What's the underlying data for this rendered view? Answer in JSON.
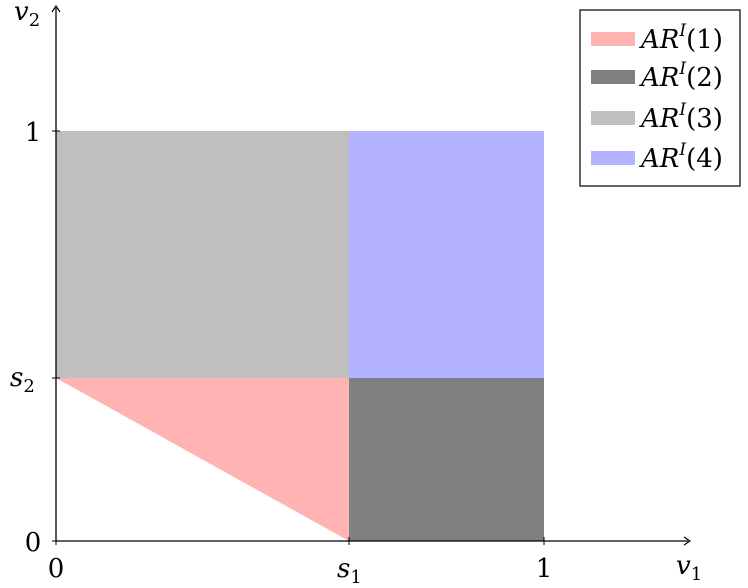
{
  "axes": {
    "x_label": "v",
    "x_label_sub": "1",
    "y_label": "v",
    "y_label_sub": "2",
    "x_ticks": [
      {
        "text": "0",
        "sub": ""
      },
      {
        "text": "s",
        "sub": "1"
      },
      {
        "text": "1",
        "sub": ""
      }
    ],
    "y_ticks": [
      {
        "text": "0",
        "sub": ""
      },
      {
        "text": "s",
        "sub": "2"
      },
      {
        "text": "1",
        "sub": ""
      }
    ]
  },
  "regions": [
    {
      "id": "AR1",
      "color": "#FFB3B3"
    },
    {
      "id": "AR2",
      "color": "#808080"
    },
    {
      "id": "AR3",
      "color": "#BFBFBF"
    },
    {
      "id": "AR4",
      "color": "#B3B3FF"
    }
  ],
  "legend": {
    "items": [
      {
        "base": "AR",
        "sup": "I",
        "arg": "(1)",
        "color": "#FFB3B3"
      },
      {
        "base": "AR",
        "sup": "I",
        "arg": "(2)",
        "color": "#808080"
      },
      {
        "base": "AR",
        "sup": "I",
        "arg": "(3)",
        "color": "#BFBFBF"
      },
      {
        "base": "AR",
        "sup": "I",
        "arg": "(4)",
        "color": "#B3B3FF"
      }
    ]
  }
}
